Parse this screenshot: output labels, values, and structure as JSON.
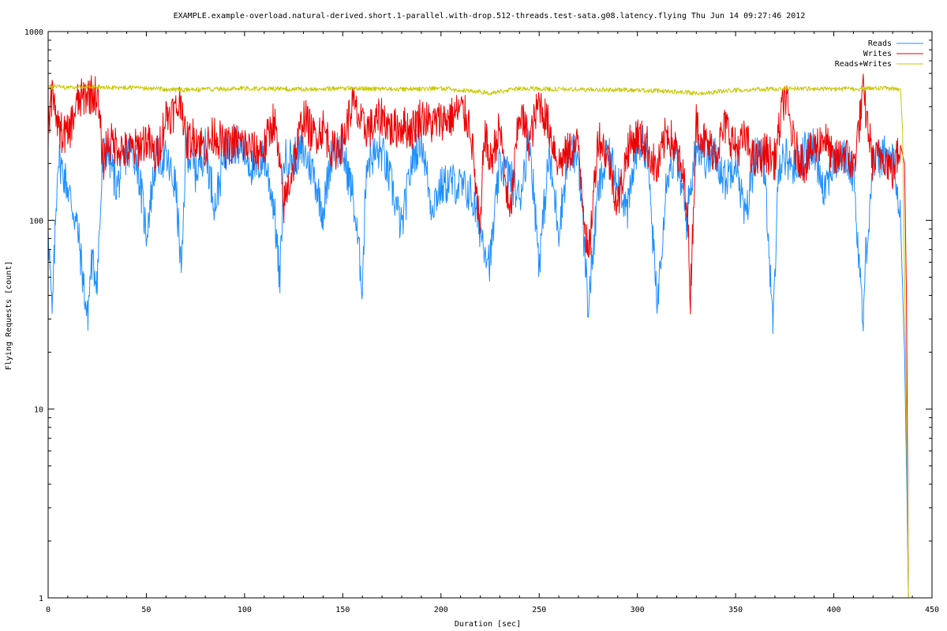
{
  "chart_data": {
    "type": "line",
    "title": "EXAMPLE.example-overload.natural-derived.short.1-parallel.with-drop.512-threads.test-sata.g08.latency.flying Thu Jun 14 09:27:46 2012",
    "xlabel": "Duration [sec]",
    "ylabel": "Flying Requests [count]",
    "xlim": [
      0,
      450
    ],
    "ylim": [
      1,
      1000
    ],
    "y_scale": "log",
    "grid": false,
    "legend_position": "top-right",
    "x_ticks": [
      0,
      50,
      100,
      150,
      200,
      250,
      300,
      350,
      400,
      450
    ],
    "y_ticks": [
      1,
      10,
      100,
      1000
    ],
    "x_tick_labels": [
      "0",
      "50",
      "100",
      "150",
      "200",
      "250",
      "300",
      "350",
      "400",
      "450"
    ],
    "y_tick_labels": [
      "1",
      "10",
      "100",
      "1000"
    ],
    "series": [
      {
        "name": "Reads",
        "color": "#1e90ff",
        "x": [
          0,
          2,
          5,
          10,
          15,
          20,
          22,
          25,
          28,
          30,
          35,
          40,
          45,
          50,
          55,
          60,
          65,
          68,
          70,
          75,
          80,
          85,
          90,
          95,
          100,
          105,
          110,
          115,
          118,
          120,
          125,
          130,
          135,
          140,
          145,
          150,
          155,
          160,
          162,
          165,
          170,
          175,
          180,
          185,
          190,
          195,
          200,
          205,
          210,
          215,
          220,
          225,
          230,
          235,
          240,
          245,
          250,
          255,
          260,
          265,
          270,
          275,
          280,
          285,
          290,
          295,
          300,
          305,
          310,
          315,
          320,
          325,
          330,
          335,
          340,
          345,
          350,
          355,
          360,
          365,
          369,
          372,
          375,
          380,
          385,
          390,
          395,
          400,
          405,
          410,
          415,
          416,
          420,
          425,
          430,
          434,
          436,
          437,
          438
        ],
        "values": [
          100,
          30,
          220,
          150,
          90,
          30,
          60,
          50,
          220,
          240,
          150,
          230,
          220,
          85,
          220,
          210,
          150,
          50,
          250,
          180,
          240,
          120,
          230,
          260,
          230,
          180,
          220,
          120,
          45,
          210,
          220,
          230,
          180,
          110,
          250,
          230,
          140,
          45,
          200,
          220,
          230,
          150,
          90,
          200,
          280,
          120,
          150,
          160,
          150,
          140,
          90,
          60,
          200,
          170,
          130,
          280,
          60,
          220,
          90,
          230,
          220,
          35,
          140,
          220,
          170,
          110,
          260,
          240,
          35,
          180,
          220,
          100,
          260,
          210,
          220,
          160,
          220,
          100,
          230,
          190,
          25,
          200,
          220,
          190,
          230,
          240,
          150,
          200,
          220,
          180,
          28,
          60,
          200,
          220,
          210,
          100,
          20,
          5,
          1
        ]
      },
      {
        "name": "Writes",
        "color": "#ee0000",
        "x": [
          0,
          2,
          5,
          10,
          15,
          20,
          25,
          28,
          30,
          35,
          40,
          45,
          50,
          55,
          60,
          65,
          68,
          70,
          75,
          80,
          85,
          90,
          95,
          100,
          105,
          110,
          115,
          120,
          125,
          130,
          135,
          140,
          145,
          150,
          155,
          160,
          165,
          170,
          175,
          180,
          185,
          190,
          195,
          200,
          205,
          210,
          215,
          220,
          222,
          225,
          230,
          235,
          240,
          245,
          250,
          255,
          260,
          265,
          270,
          275,
          280,
          285,
          290,
          295,
          300,
          305,
          310,
          315,
          320,
          325,
          327,
          330,
          335,
          340,
          345,
          350,
          355,
          360,
          365,
          370,
          375,
          380,
          385,
          390,
          395,
          400,
          405,
          410,
          415,
          420,
          425,
          430,
          434,
          436,
          437,
          438
        ],
        "values": [
          300,
          470,
          300,
          280,
          420,
          470,
          460,
          200,
          260,
          250,
          230,
          240,
          270,
          210,
          360,
          380,
          440,
          260,
          280,
          240,
          290,
          240,
          260,
          250,
          230,
          240,
          350,
          120,
          200,
          360,
          280,
          310,
          230,
          260,
          420,
          310,
          310,
          360,
          300,
          320,
          300,
          360,
          320,
          340,
          350,
          390,
          320,
          80,
          300,
          200,
          310,
          100,
          380,
          260,
          430,
          310,
          200,
          230,
          250,
          60,
          280,
          220,
          120,
          240,
          280,
          250,
          180,
          300,
          230,
          140,
          40,
          330,
          250,
          230,
          320,
          240,
          270,
          200,
          230,
          210,
          470,
          240,
          200,
          240,
          280,
          200,
          230,
          190,
          470,
          200,
          230,
          180,
          250,
          200,
          40,
          1
        ]
      },
      {
        "name": "Reads+Writes",
        "color": "#c8c800",
        "x": [
          0,
          5,
          10,
          20,
          30,
          50,
          70,
          100,
          130,
          150,
          180,
          200,
          220,
          225,
          240,
          260,
          300,
          320,
          330,
          350,
          380,
          400,
          420,
          430,
          434,
          435,
          436,
          437,
          438
        ],
        "values": [
          505,
          510,
          505,
          510,
          505,
          500,
          490,
          500,
          495,
          500,
          495,
          500,
          480,
          470,
          500,
          495,
          490,
          480,
          470,
          490,
          500,
          495,
          500,
          500,
          490,
          300,
          50,
          10,
          1
        ]
      }
    ]
  }
}
